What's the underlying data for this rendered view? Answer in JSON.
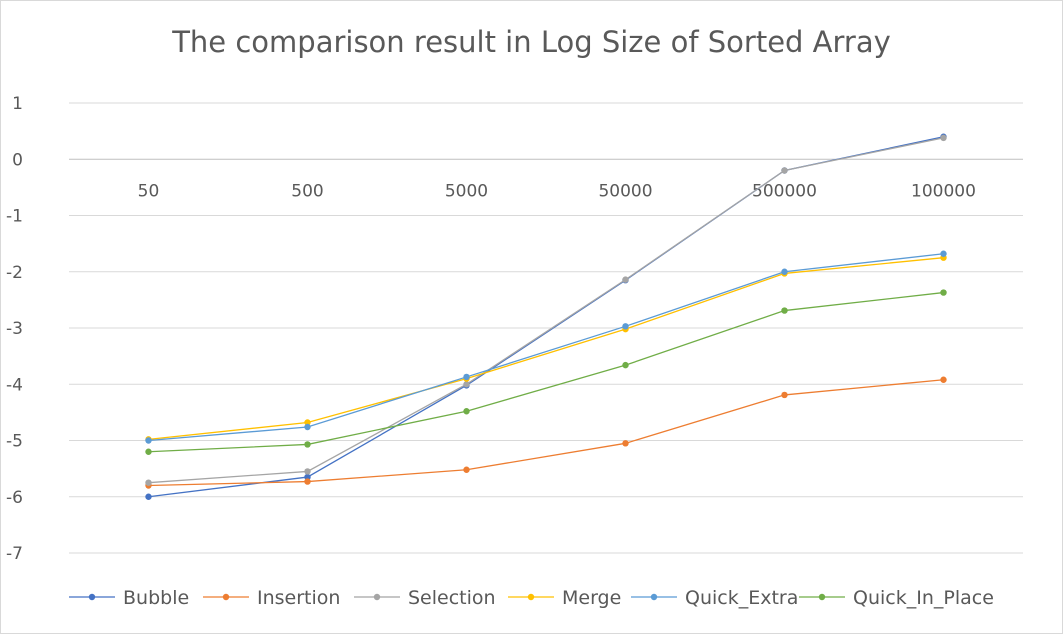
{
  "chart_data": {
    "type": "line",
    "title": "The comparison result in Log Size of Sorted Array",
    "xlabel": "",
    "ylabel": "",
    "categories": [
      "50",
      "500",
      "5000",
      "50000",
      "500000",
      "100000"
    ],
    "ylim": [
      -7,
      1
    ],
    "yticks": [
      1,
      0,
      -1,
      -2,
      -3,
      -4,
      -5,
      -6,
      -7
    ],
    "grid": true,
    "legend_position": "bottom",
    "series": [
      {
        "name": "Bubble",
        "color": "#4472c4",
        "values": [
          -6.0,
          -5.65,
          -4.02,
          -2.15,
          -0.2,
          0.4
        ]
      },
      {
        "name": "Insertion",
        "color": "#ed7d31",
        "values": [
          -5.8,
          -5.73,
          -5.52,
          -5.05,
          -4.19,
          -3.92
        ]
      },
      {
        "name": "Selection",
        "color": "#a5a5a5",
        "values": [
          -5.75,
          -5.55,
          -4.0,
          -2.14,
          -0.2,
          0.38
        ]
      },
      {
        "name": "Merge",
        "color": "#ffc000",
        "values": [
          -4.98,
          -4.68,
          -3.9,
          -3.02,
          -2.03,
          -1.75
        ]
      },
      {
        "name": "Quick_Extra",
        "color": "#5b9bd5",
        "values": [
          -5.0,
          -4.76,
          -3.87,
          -2.97,
          -2.0,
          -1.68
        ]
      },
      {
        "name": "Quick_In_Place",
        "color": "#70ad47",
        "values": [
          -5.2,
          -5.07,
          -4.48,
          -3.66,
          -2.69,
          -2.37
        ]
      }
    ]
  }
}
